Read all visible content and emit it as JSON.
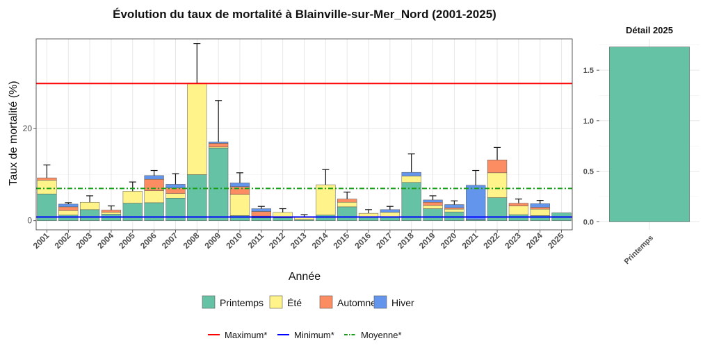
{
  "chart_data": [
    {
      "type": "bar",
      "stacked": true,
      "title": "Évolution du taux de mortalité à Blainville-sur-Mer_Nord (2001-2025)",
      "xlabel": "Année",
      "ylabel": "Taux de mortalité (%)",
      "ylim": [
        -2,
        39.5
      ],
      "yticks": [
        0,
        20
      ],
      "grid": true,
      "categories": [
        "2001",
        "2002",
        "2003",
        "2004",
        "2005",
        "2006",
        "2007",
        "2008",
        "2009",
        "2010",
        "2011",
        "2012",
        "2013",
        "2014",
        "2015",
        "2016",
        "2017",
        "2018",
        "2019",
        "2020",
        "2021",
        "2022",
        "2023",
        "2024",
        "2025"
      ],
      "series": [
        {
          "name": "Printemps",
          "color": "#66C2A5",
          "values": [
            5.8,
            1.2,
            2.4,
            1.4,
            3.8,
            3.9,
            4.9,
            10.0,
            15.8,
            1.1,
            0.6,
            0.6,
            0.2,
            1.2,
            3.0,
            0.7,
            0.8,
            8.3,
            2.6,
            1.9,
            0.2,
            5.0,
            1.3,
            1.1,
            1.7
          ]
        },
        {
          "name": "Été",
          "color": "#FFF38A",
          "values": [
            3.0,
            1.0,
            1.6,
            0.4,
            2.6,
            2.6,
            1.0,
            19.9,
            0.2,
            4.6,
            0.4,
            1.2,
            0.5,
            6.6,
            1.0,
            0.9,
            1.0,
            1.4,
            0.7,
            0.6,
            0.0,
            5.4,
            1.9,
            1.4,
            0.0
          ]
        },
        {
          "name": "Automne",
          "color": "#FC8D62",
          "values": [
            0.5,
            0.8,
            0.0,
            0.5,
            0.0,
            2.5,
            1.2,
            0.0,
            0.8,
            1.7,
            1.0,
            0.0,
            0.0,
            0.0,
            0.7,
            0.0,
            0.0,
            0.0,
            0.7,
            0.3,
            0.0,
            2.8,
            0.6,
            0.4,
            0.0
          ]
        },
        {
          "name": "Hiver",
          "color": "#6495ED",
          "values": [
            0.0,
            0.6,
            0.0,
            0.0,
            0.0,
            0.8,
            0.8,
            0.0,
            0.3,
            0.8,
            0.6,
            0.0,
            0.0,
            0.0,
            0.0,
            0.0,
            0.6,
            0.8,
            0.5,
            0.7,
            7.5,
            0.0,
            0.0,
            0.8,
            0.0
          ]
        }
      ],
      "error_bar_tops": [
        12.1,
        3.9,
        5.4,
        3.2,
        8.4,
        10.9,
        10.2,
        38.5,
        26.1,
        10.4,
        3.1,
        2.6,
        1.3,
        11.1,
        6.2,
        2.4,
        3.1,
        14.5,
        5.4,
        4.3,
        10.9,
        15.9,
        4.7,
        4.4,
        1.7
      ],
      "reference_lines": [
        {
          "name": "Maximum*",
          "value": 29.8,
          "color": "#FF0000",
          "style": "solid"
        },
        {
          "name": "Minimum*",
          "value": 0.8,
          "color": "#0000FF",
          "style": "solid"
        },
        {
          "name": "Moyenne*",
          "value": 7.0,
          "color": "#1A9F1A",
          "style": "dotdash"
        }
      ]
    },
    {
      "type": "bar",
      "title": "Détail 2025",
      "categories": [
        "Printemps"
      ],
      "values": [
        1.73
      ],
      "color": "#66C2A5",
      "ylim": [
        -0.08,
        1.81
      ],
      "yticks": [
        0.0,
        0.5,
        1.0,
        1.5
      ],
      "grid": true
    }
  ],
  "legend": {
    "fill_items": [
      "Printemps",
      "Été",
      "Automne",
      "Hiver"
    ],
    "line_items": [
      "Maximum*",
      "Minimum*",
      "Moyenne*"
    ]
  }
}
